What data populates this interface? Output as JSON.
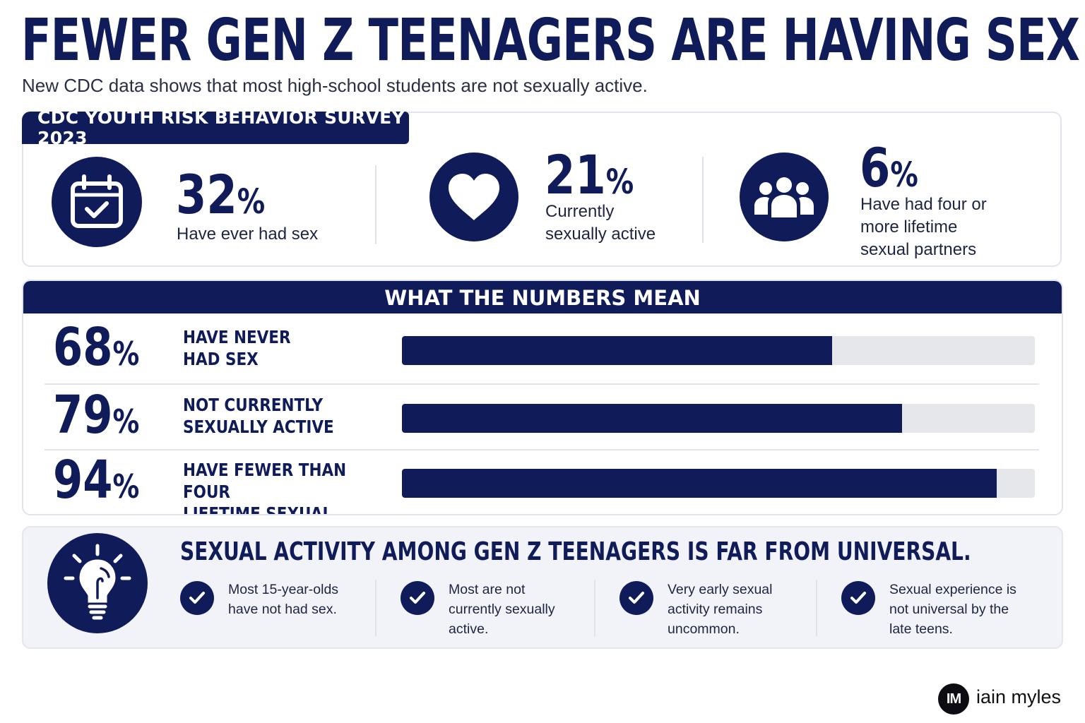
{
  "header": {
    "title": "FEWER GEN Z TEENAGERS ARE HAVING SEX",
    "subtitle": "New CDC data shows that most high-school students are not sexually active."
  },
  "survey": {
    "tab_label": "CDC YOUTH RISK BEHAVIOR SURVEY 2023",
    "stats": [
      {
        "icon": "calendar-check-icon",
        "number": "32",
        "unit": "%",
        "label_lines": [
          "Have ever had sex"
        ]
      },
      {
        "icon": "heart-icon",
        "number": "21",
        "unit": "%",
        "label_lines": [
          "Currently",
          "sexually active"
        ]
      },
      {
        "icon": "group-people-icon",
        "number": "6",
        "unit": "%",
        "label_lines": [
          "Have had four or",
          "more lifetime",
          "sexual partners"
        ]
      }
    ]
  },
  "meaning": {
    "heading": "WHAT THE NUMBERS MEAN",
    "rows": [
      {
        "number": "68",
        "unit": "%",
        "label_lines": [
          "HAVE NEVER",
          "HAD SEX"
        ]
      },
      {
        "number": "79",
        "unit": "%",
        "label_lines": [
          "NOT CURRENTLY",
          "SEXUALLY ACTIVE"
        ]
      },
      {
        "number": "94",
        "unit": "%",
        "label_lines": [
          "HAVE FEWER THAN FOUR",
          "LIFETIME SEXUAL PARTNERS"
        ]
      }
    ]
  },
  "chart_data": {
    "type": "bar",
    "orientation": "horizontal",
    "categories": [
      "HAVE NEVER HAD SEX",
      "NOT CURRENTLY SEXUALLY ACTIVE",
      "HAVE FEWER THAN FOUR LIFETIME SEXUAL PARTNERS"
    ],
    "values": [
      68,
      79,
      94
    ],
    "xlim": [
      0,
      100
    ],
    "title": "WHAT THE NUMBERS MEAN",
    "grid": false
  },
  "takeaway": {
    "icon": "lightbulb-icon",
    "heading": "SEXUAL ACTIVITY AMONG GEN Z TEENAGERS IS FAR FROM UNIVERSAL.",
    "points": [
      {
        "icon": "check-icon",
        "lines": [
          "Most 15-year-olds",
          "have not had sex."
        ]
      },
      {
        "icon": "check-icon",
        "lines": [
          "Most are not",
          "currently sexually",
          "active."
        ]
      },
      {
        "icon": "check-icon",
        "lines": [
          "Very early sexual",
          "activity remains",
          "uncommon."
        ]
      },
      {
        "icon": "check-icon",
        "lines": [
          "Sexual experience is",
          "not universal by the",
          "late teens."
        ]
      }
    ]
  },
  "brand": {
    "logo_text": "IM",
    "name": "iain myles"
  },
  "colors": {
    "navy": "#101c5a",
    "track": "#e6e7eb",
    "panel_bg": "#f2f3f8"
  }
}
